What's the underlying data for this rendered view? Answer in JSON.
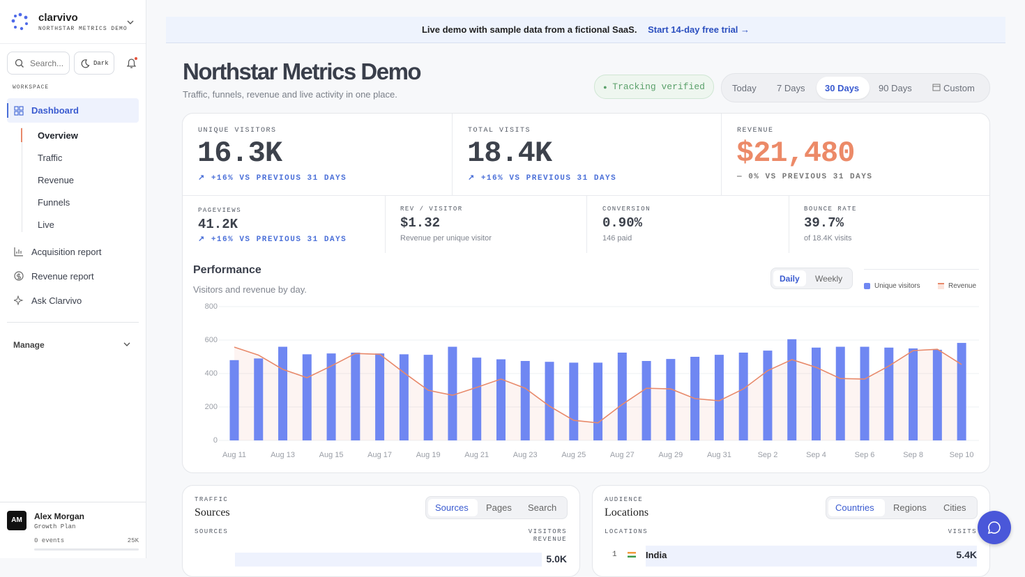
{
  "sidebar": {
    "brand": "clarvivo",
    "workspace_name": "NORTHSTAR METRICS DEMO",
    "search": "Search...",
    "theme": "Dark",
    "section": "WORKSPACE",
    "dashboard": "Dashboard",
    "subnav": [
      "Overview",
      "Traffic",
      "Revenue",
      "Funnels",
      "Live"
    ],
    "nav": [
      "Acquisition report",
      "Revenue report",
      "Ask Clarvivo"
    ],
    "manage": "Manage",
    "user": {
      "initials": "AM",
      "name": "Alex Morgan",
      "plan": "Growth Plan",
      "events": "0 events",
      "limit": "25K"
    }
  },
  "banner": {
    "text": "Live demo with sample data from a fictional SaaS.",
    "link": "Start 14-day free trial →"
  },
  "header": {
    "title": "Northstar Metrics Demo",
    "subtitle": "Traffic, funnels, revenue and live activity in one place.",
    "status": "Tracking verified",
    "ranges": [
      "Today",
      "7 Days",
      "30 Days",
      "90 Days",
      "Custom"
    ]
  },
  "kpis": [
    {
      "label": "UNIQUE VISITORS",
      "value": "16.3K",
      "delta": "+16% VS PREVIOUS 31 DAYS"
    },
    {
      "label": "TOTAL VISITS",
      "value": "18.4K",
      "delta": "+16% VS PREVIOUS 31 DAYS"
    },
    {
      "label": "REVENUE",
      "value": "$21,480",
      "delta": "— 0% VS PREVIOUS 31 DAYS"
    }
  ],
  "small_kpis": [
    {
      "label": "PAGEVIEWS",
      "value": "41.2K",
      "note": "+16% VS PREVIOUS 31 DAYS"
    },
    {
      "label": "REV / VISITOR",
      "value": "$1.32",
      "note": "Revenue per unique visitor"
    },
    {
      "label": "CONVERSION",
      "value": "0.90%",
      "note": "146 paid"
    },
    {
      "label": "BOUNCE RATE",
      "value": "39.7%",
      "note": "of 18.4K visits"
    }
  ],
  "chart_data": {
    "type": "bar",
    "title": "Performance",
    "subtitle": "Visitors and revenue by day.",
    "toggles": [
      "Daily",
      "Weekly"
    ],
    "categories": [
      "Aug 11",
      null,
      "Aug 13",
      null,
      "Aug 15",
      null,
      "Aug 17",
      null,
      "Aug 19",
      null,
      "Aug 21",
      null,
      "Aug 23",
      null,
      "Aug 25",
      null,
      "Aug 27",
      null,
      "Aug 29",
      null,
      "Aug 31",
      null,
      "Sep 2",
      null,
      "Sep 4",
      null,
      "Sep 6",
      null,
      "Sep 8",
      null,
      "Sep 10"
    ],
    "series": [
      {
        "name": "Unique visitors",
        "type": "bar",
        "color": "#6f87f2",
        "values": [
          480,
          490,
          560,
          515,
          520,
          525,
          520,
          515,
          512,
          560,
          495,
          485,
          475,
          470,
          465,
          465,
          525,
          475,
          487,
          500,
          512,
          525,
          537,
          605,
          555,
          560,
          560,
          555,
          550,
          542,
          583
        ]
      },
      {
        "name": "Revenue",
        "type": "line",
        "color": "#e8896a",
        "values": [
          558,
          510,
          425,
          375,
          445,
          520,
          515,
          405,
          300,
          270,
          317,
          367,
          312,
          205,
          120,
          105,
          215,
          312,
          308,
          250,
          237,
          308,
          417,
          483,
          437,
          370,
          367,
          445,
          537,
          545,
          454
        ]
      }
    ],
    "ylim": [
      0,
      800
    ],
    "yticks": [
      0,
      200,
      400,
      600,
      800
    ],
    "grid": true
  },
  "traffic": {
    "eyebrow": "TRAFFIC",
    "title": "Sources",
    "tabs": [
      "Sources",
      "Pages",
      "Search"
    ],
    "columns": [
      "SOURCES",
      "VISITORS",
      "REVENUE"
    ],
    "first_value": "5.0K"
  },
  "audience": {
    "eyebrow": "AUDIENCE",
    "title": "Locations",
    "tabs": [
      "Countries",
      "Regions",
      "Cities"
    ],
    "columns": [
      "LOCATIONS",
      "VISITS"
    ],
    "rows": [
      {
        "rank": "1",
        "name": "India",
        "value": "5.4K"
      }
    ]
  }
}
